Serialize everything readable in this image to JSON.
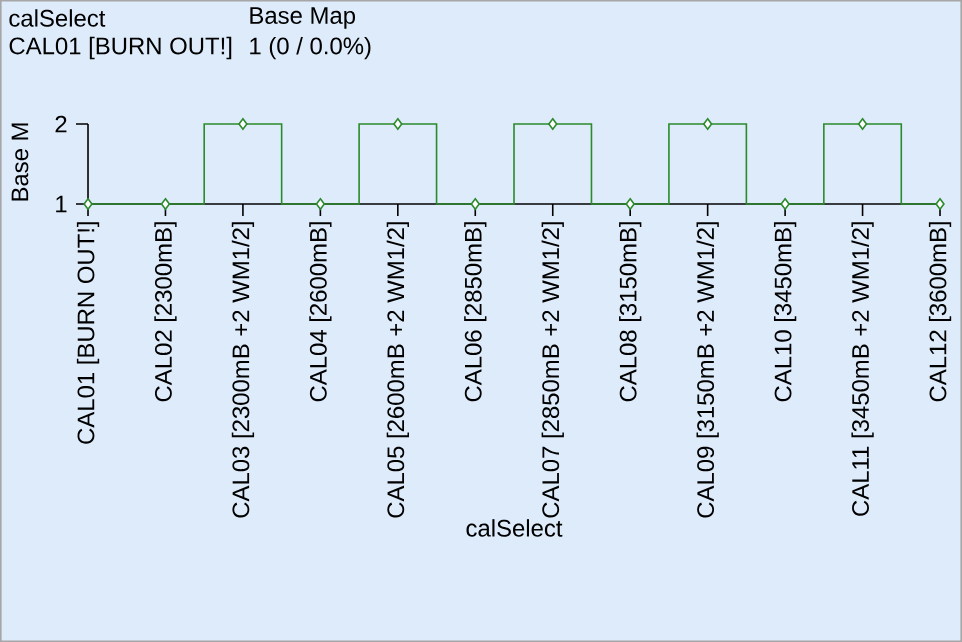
{
  "chart_data": {
    "type": "step",
    "xlabel": "calSelect",
    "ylabel": "Base M",
    "annotations": [
      "calSelect",
      "CAL01 [BURN OUT!]",
      "Base Map",
      "1 (0 / 0.0%)"
    ],
    "categories": [
      "CAL01 [BURN OUT!]",
      "CAL02 [2300mB]",
      "CAL03 [2300mB +2 WM1/2]",
      "CAL04 [2600mB]",
      "CAL05 [2600mB +2 WM1/2]",
      "CAL06 [2850mB]",
      "CAL07 [2850mB +2 WM1/2]",
      "CAL08 [3150mB]",
      "CAL09 [3150mB +2 WM1/2]",
      "CAL10 [3450mB]",
      "CAL11 [3450mB +2 WM1/2]",
      "CAL12 [3600mB]"
    ],
    "values": [
      1,
      1,
      2,
      1,
      2,
      1,
      2,
      1,
      2,
      1,
      2,
      1
    ],
    "color": "#2b8a2b",
    "marker": "diamond",
    "ylim": [
      1,
      2
    ],
    "yticks": [
      1,
      2
    ],
    "grid": false
  }
}
